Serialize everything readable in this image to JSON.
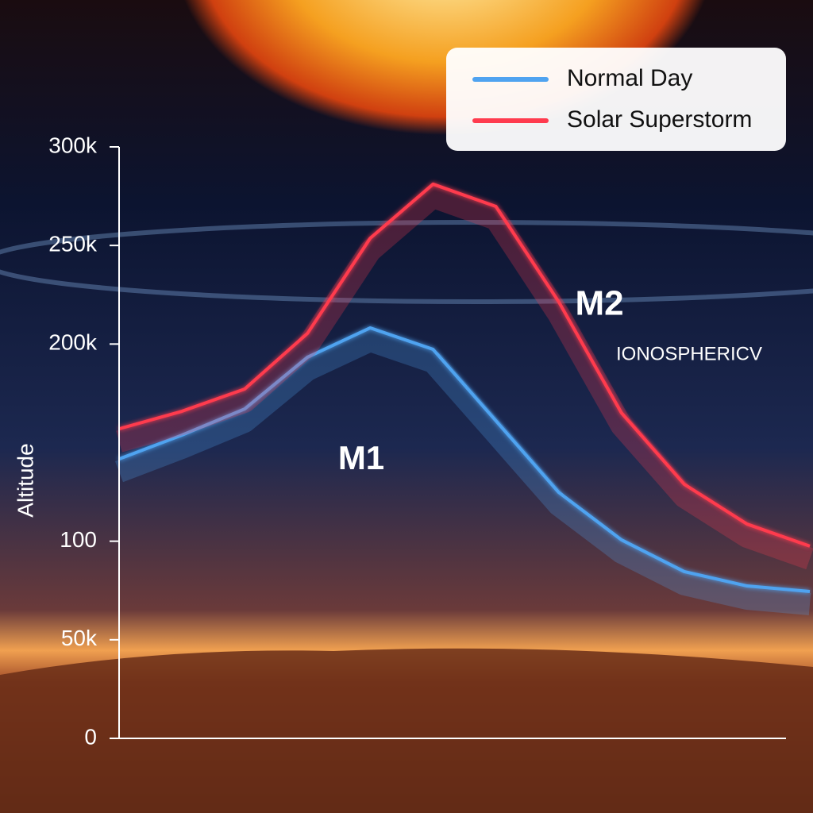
{
  "chart_data": {
    "type": "line",
    "y_label": "Altitude",
    "categories": [
      null,
      null,
      null,
      null,
      null,
      null,
      null,
      null,
      null,
      null,
      null,
      null
    ],
    "series": [
      {
        "name": "Normal Day",
        "color": "#4fa3f0",
        "values": [
          141700,
          153800,
          167100,
          193300,
          208200,
          197300,
          161100,
          124800,
          100700,
          84600,
          77300,
          74500
        ]
      },
      {
        "name": "Solar Superstorm",
        "color": "#ff3b4e",
        "values": [
          157000,
          165900,
          177200,
          205400,
          253700,
          281100,
          269800,
          221500,
          165100,
          128900,
          108700,
          97500
        ]
      }
    ],
    "ylim": [
      0,
      300000
    ],
    "yticks": [
      0,
      {
        "value": 50000,
        "label": "50k"
      },
      {
        "value": 100000,
        "label": "100"
      },
      {
        "value": 200000,
        "label": "200k"
      },
      {
        "value": 250000,
        "label": "250k"
      },
      {
        "value": 300000,
        "label": "300k"
      }
    ],
    "annotations": [
      "M1",
      "M2",
      "IONOSPHERICV"
    ],
    "legend": "top-right",
    "grid": false
  }
}
